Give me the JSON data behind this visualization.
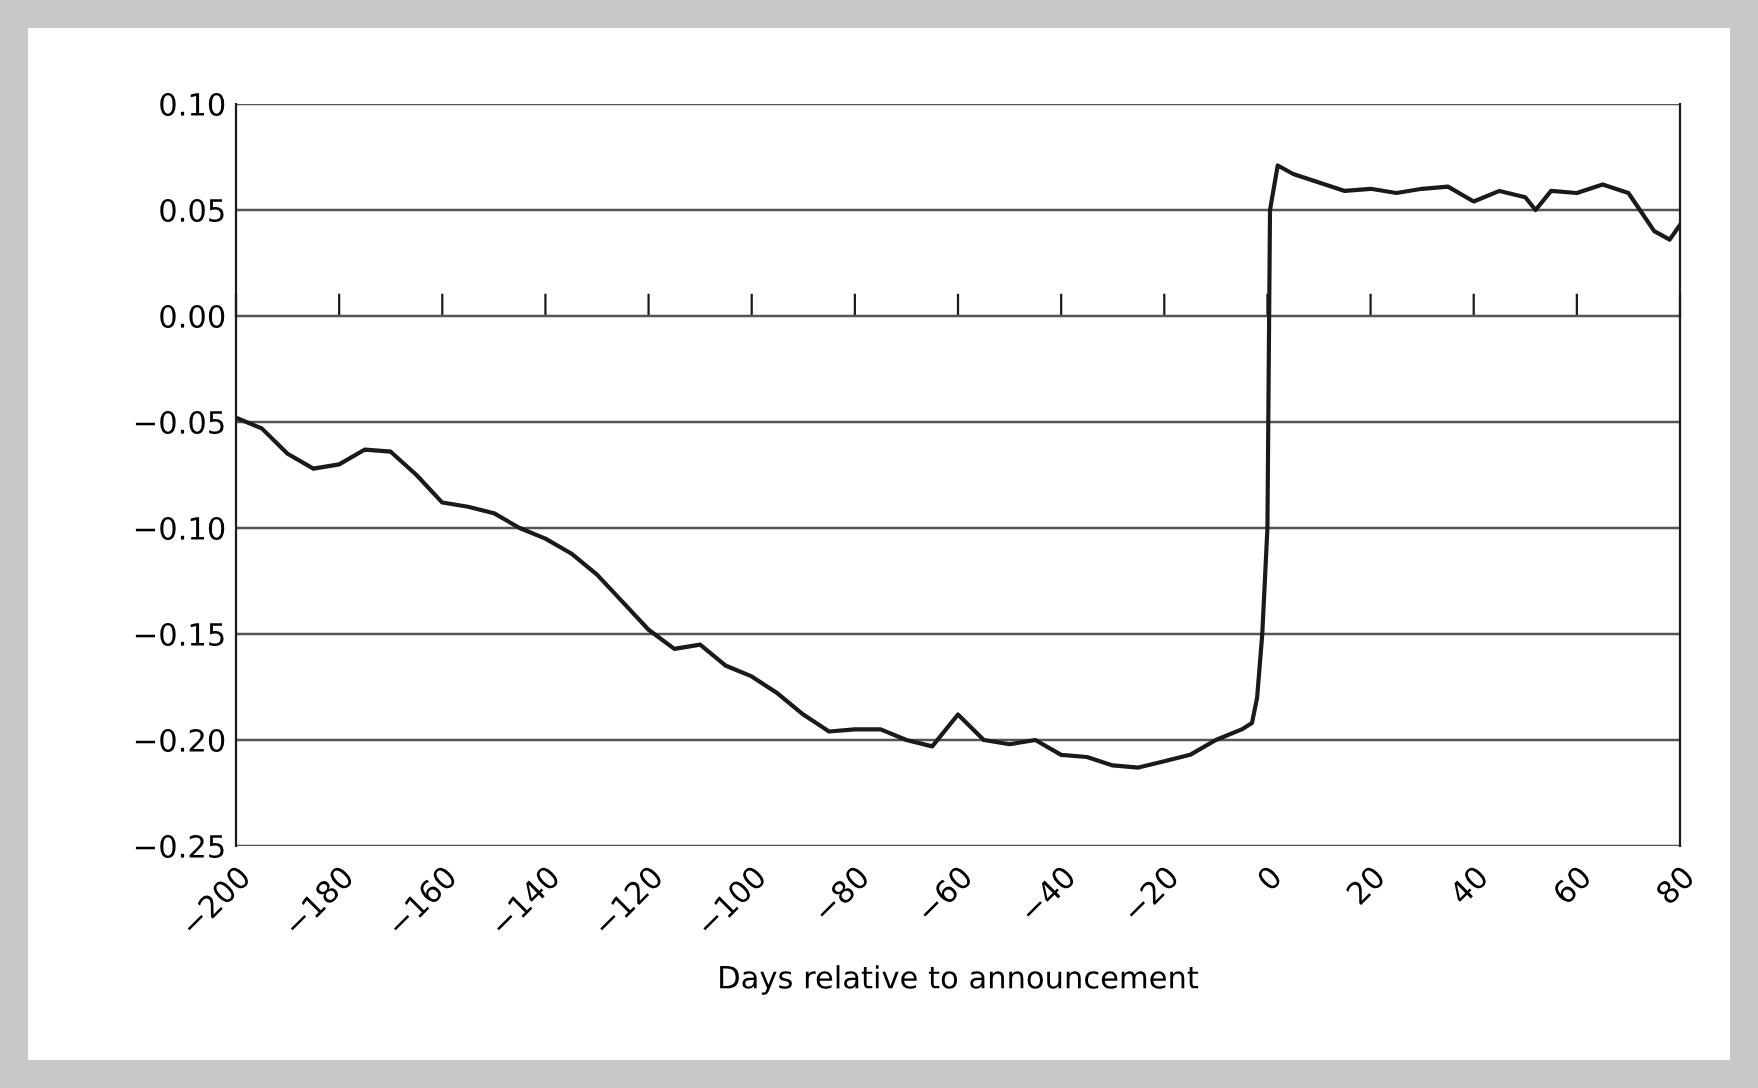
{
  "chart_data": {
    "type": "line",
    "xlabel": "Days relative to announcement",
    "color": "#1a1a1a",
    "grid": "y",
    "line_style": "solid",
    "marker": "none",
    "x": [
      -200,
      -195,
      -190,
      -185,
      -180,
      -175,
      -170,
      -165,
      -160,
      -155,
      -150,
      -145,
      -140,
      -135,
      -130,
      -125,
      -120,
      -115,
      -110,
      -105,
      -100,
      -95,
      -90,
      -85,
      -80,
      -75,
      -70,
      -65,
      -60,
      -55,
      -50,
      -45,
      -40,
      -35,
      -30,
      -25,
      -20,
      -15,
      -10,
      -5,
      -3,
      -2,
      -1,
      0,
      0.5,
      2,
      5,
      10,
      15,
      20,
      25,
      30,
      35,
      40,
      45,
      50,
      52,
      55,
      60,
      65,
      70,
      75,
      78,
      80
    ],
    "values": [
      -0.048,
      -0.053,
      -0.065,
      -0.072,
      -0.07,
      -0.063,
      -0.064,
      -0.075,
      -0.088,
      -0.09,
      -0.093,
      -0.1,
      -0.105,
      -0.112,
      -0.122,
      -0.135,
      -0.148,
      -0.157,
      -0.155,
      -0.165,
      -0.17,
      -0.178,
      -0.188,
      -0.196,
      -0.195,
      -0.195,
      -0.2,
      -0.203,
      -0.188,
      -0.2,
      -0.202,
      -0.2,
      -0.207,
      -0.208,
      -0.212,
      -0.213,
      -0.21,
      -0.207,
      -0.2,
      -0.195,
      -0.192,
      -0.18,
      -0.15,
      -0.1,
      0.05,
      0.071,
      0.067,
      0.063,
      0.059,
      0.06,
      0.058,
      0.06,
      0.061,
      0.054,
      0.059,
      0.056,
      0.05,
      0.059,
      0.058,
      0.062,
      0.058,
      0.04,
      0.036,
      0.043
    ],
    "xlim": [
      -200,
      80
    ],
    "xticks": [
      {
        "value": -200,
        "label": "−200"
      },
      {
        "value": -180,
        "label": "−180"
      },
      {
        "value": -160,
        "label": "−160"
      },
      {
        "value": -140,
        "label": "−140"
      },
      {
        "value": -120,
        "label": "−120"
      },
      {
        "value": -100,
        "label": "−100"
      },
      {
        "value": -80,
        "label": "−80"
      },
      {
        "value": -60,
        "label": "−60"
      },
      {
        "value": -40,
        "label": "−40"
      },
      {
        "value": -20,
        "label": "−20"
      },
      0,
      20,
      40,
      60,
      80
    ],
    "ylim": [
      -0.25,
      0.1
    ],
    "yticks": [
      {
        "value": 0.1,
        "label": "0.10"
      },
      {
        "value": 0.05,
        "label": "0.05"
      },
      {
        "value": 0,
        "label": "0.00"
      },
      {
        "value": -0.05,
        "label": "−0.05"
      },
      {
        "value": -0.1,
        "label": "−0.10"
      },
      {
        "value": -0.15,
        "label": "−0.15"
      },
      {
        "value": -0.2,
        "label": "−0.20"
      },
      {
        "value": -0.25,
        "label": "−0.25"
      }
    ]
  }
}
